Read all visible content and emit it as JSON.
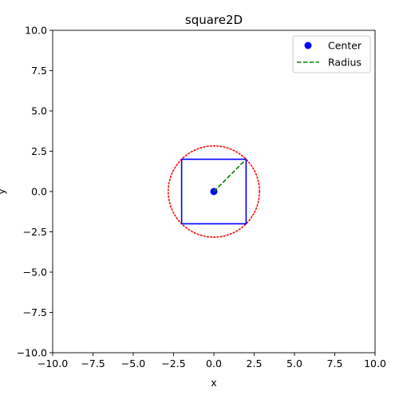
{
  "chart_data": {
    "type": "scatter",
    "title": "square2D",
    "xlabel": "x",
    "ylabel": "y",
    "xlim": [
      -10,
      10
    ],
    "ylim": [
      -10,
      10
    ],
    "xticks": [
      -10,
      -7.5,
      -5,
      -2.5,
      0,
      2.5,
      5,
      7.5,
      10
    ],
    "yticks": [
      -10,
      -7.5,
      -5,
      -2.5,
      0,
      2.5,
      5,
      7.5,
      10
    ],
    "xtick_labels": [
      "−10.0",
      "−7.5",
      "−5.0",
      "−2.5",
      "0.0",
      "2.5",
      "5.0",
      "7.5",
      "10.0"
    ],
    "ytick_labels": [
      "−10.0",
      "−7.5",
      "−5.0",
      "−2.5",
      "0.0",
      "2.5",
      "5.0",
      "7.5",
      "10.0"
    ],
    "grid": false,
    "legend_position": "top-right",
    "square": {
      "corners": [
        [
          -2,
          -2
        ],
        [
          2,
          -2
        ],
        [
          2,
          2
        ],
        [
          -2,
          2
        ]
      ],
      "color": "#0000ff",
      "style": "solid"
    },
    "circle": {
      "center": [
        0,
        0
      ],
      "radius": 2.83,
      "color": "#ff0000",
      "style": "dotted"
    },
    "series": [
      {
        "name": "Center",
        "marker": "circle",
        "color": "#0000ff",
        "points": [
          [
            0,
            0
          ]
        ]
      },
      {
        "name": "Radius",
        "line": "dashed",
        "color": "#008000",
        "points": [
          [
            0,
            0
          ],
          [
            2,
            2
          ]
        ]
      }
    ]
  }
}
